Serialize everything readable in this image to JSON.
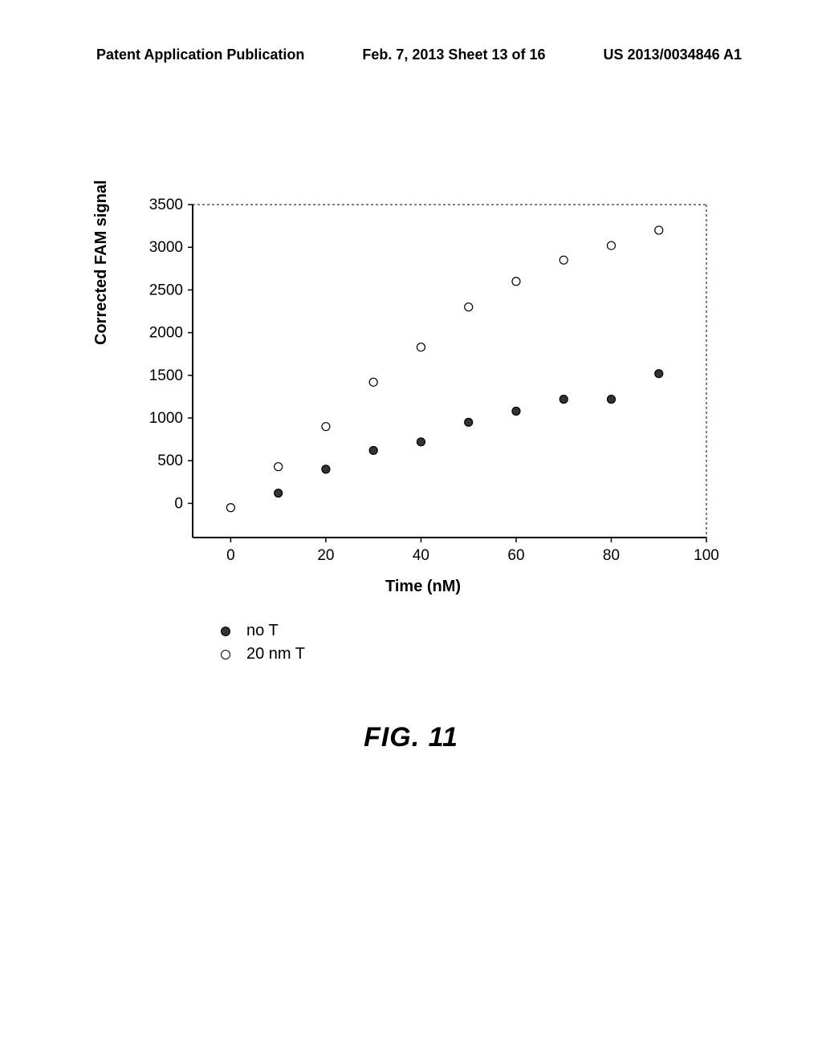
{
  "header": {
    "left": "Patent Application Publication",
    "center": "Feb. 7, 2013  Sheet 13 of 16",
    "right": "US 2013/0034846 A1"
  },
  "figure_caption": "FIG. 11",
  "chart": {
    "type": "scatter",
    "ylabel": "Corrected FAM signal",
    "xlabel": "Time (nM)",
    "xlim": [
      -8,
      100
    ],
    "ylim": [
      -400,
      3500
    ],
    "xticks": [
      0,
      20,
      40,
      60,
      80,
      100
    ],
    "yticks": [
      0,
      500,
      1000,
      1500,
      2000,
      2500,
      3000,
      3500
    ],
    "tick_fontsize": 19,
    "label_fontsize": 20,
    "label_fontweight": "bold",
    "axis_color": "#000000",
    "background_color": "#ffffff",
    "border_top_style": "dotted",
    "border_right_style": "dotted",
    "series": [
      {
        "name": "no_T",
        "label": "no T",
        "marker": "filled-circle",
        "fill_color": "#333333",
        "stroke_color": "#000000",
        "radius": 5,
        "x": [
          10,
          20,
          30,
          40,
          50,
          60,
          70,
          80,
          90
        ],
        "y": [
          120,
          400,
          620,
          720,
          950,
          1080,
          1220,
          1220,
          1520
        ]
      },
      {
        "name": "20nm_T",
        "label": "20 nm T",
        "marker": "open-circle",
        "fill_color": "#ffffff",
        "stroke_color": "#000000",
        "radius": 5,
        "x": [
          0,
          10,
          20,
          30,
          40,
          50,
          60,
          70,
          80,
          90
        ],
        "y": [
          -50,
          430,
          900,
          1420,
          1830,
          2300,
          2600,
          2850,
          3020,
          3200
        ]
      }
    ]
  },
  "legend": {
    "items": [
      {
        "marker": "filled",
        "label": "no T"
      },
      {
        "marker": "open",
        "label": "20 nm T"
      }
    ]
  }
}
